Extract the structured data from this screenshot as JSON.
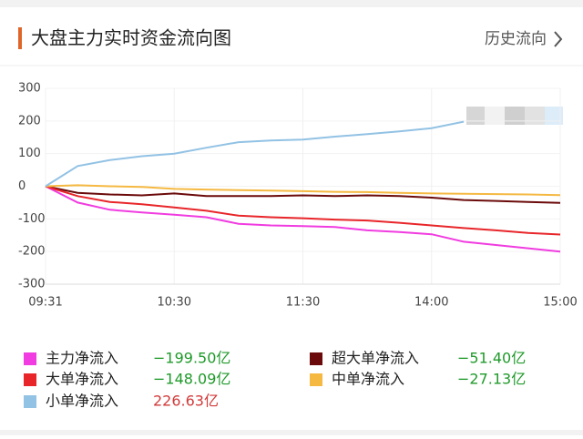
{
  "header": {
    "title": "大盘主力实时资金流向图",
    "link": "历史流向"
  },
  "chart_data": {
    "type": "line",
    "categories": [
      "09:31",
      null,
      null,
      null,
      "10:30",
      null,
      null,
      null,
      "11:30",
      null,
      null,
      null,
      "14:00",
      null,
      null,
      null,
      "15:00"
    ],
    "ylim": [
      -300,
      300
    ],
    "yticks": [
      300,
      200,
      100,
      0,
      -100,
      -200,
      -300
    ],
    "grid": true,
    "series": [
      {
        "name": "主力净流入",
        "color": "#f03ce0",
        "summary": "−199.50亿",
        "summary_color": "#1f9a2a",
        "values": [
          0,
          -50,
          -72,
          -80,
          -87,
          -95,
          -115,
          -120,
          -122,
          -125,
          -135,
          -140,
          -147,
          -170,
          -180,
          -190,
          -200
        ]
      },
      {
        "name": "超大单净流入",
        "color": "#6b0a0a",
        "summary": "−51.40亿",
        "summary_color": "#1f9a2a",
        "values": [
          0,
          -20,
          -25,
          -28,
          -22,
          -30,
          -30,
          -30,
          -28,
          -30,
          -28,
          -30,
          -35,
          -42,
          -45,
          -48,
          -51
        ]
      },
      {
        "name": "大单净流入",
        "color": "#e8262a",
        "summary": "−148.09亿",
        "summary_color": "#1f9a2a",
        "values": [
          0,
          -30,
          -48,
          -55,
          -65,
          -75,
          -90,
          -95,
          -98,
          -102,
          -105,
          -112,
          -120,
          -128,
          -135,
          -143,
          -148
        ]
      },
      {
        "name": "中单净流入",
        "color": "#f5b942",
        "summary": "−27.13亿",
        "summary_color": "#1f9a2a",
        "values": [
          0,
          3,
          0,
          -2,
          -8,
          -10,
          -12,
          -13,
          -15,
          -17,
          -18,
          -20,
          -22,
          -23,
          -24,
          -25,
          -27
        ]
      },
      {
        "name": "小单净流入",
        "color": "#92c2e4",
        "summary": "226.63亿",
        "summary_color": "#d23a3a",
        "values": [
          0,
          62,
          80,
          92,
          100,
          118,
          135,
          140,
          143,
          152,
          160,
          168,
          178,
          198,
          null,
          null,
          null
        ]
      }
    ]
  }
}
